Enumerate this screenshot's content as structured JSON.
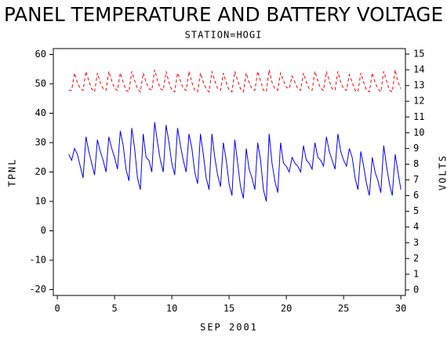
{
  "chart_data": {
    "type": "line",
    "title": "PANEL TEMPERATURE AND BATTERY VOLTAGE",
    "subtitle": "STATION=HOGI",
    "xlabel": "SEP 2001",
    "ylabel": "TPNL",
    "y2label": "VOLTS",
    "xlim": [
      -0.35,
      30.4
    ],
    "xticks": [
      0,
      5,
      10,
      15,
      20,
      25,
      30
    ],
    "ylim": [
      -22,
      62
    ],
    "yticks": [
      -20,
      -10,
      0,
      10,
      20,
      30,
      40,
      50,
      60
    ],
    "y2lim": [
      -0.35,
      15.35
    ],
    "y2ticks": [
      0,
      1,
      2,
      3,
      4,
      5,
      6,
      7,
      8,
      9,
      10,
      11,
      12,
      13,
      14,
      15
    ],
    "x": [
      1,
      1.25,
      1.5,
      1.75,
      2,
      2.25,
      2.5,
      2.75,
      3,
      3.25,
      3.5,
      3.75,
      4,
      4.25,
      4.5,
      4.75,
      5,
      5.25,
      5.5,
      5.75,
      6,
      6.25,
      6.5,
      6.75,
      7,
      7.25,
      7.5,
      7.75,
      8,
      8.25,
      8.5,
      8.75,
      9,
      9.25,
      9.5,
      9.75,
      10,
      10.25,
      10.5,
      10.75,
      11,
      11.25,
      11.5,
      11.75,
      12,
      12.25,
      12.5,
      12.75,
      13,
      13.25,
      13.5,
      13.75,
      14,
      14.25,
      14.5,
      14.75,
      15,
      15.25,
      15.5,
      15.75,
      16,
      16.25,
      16.5,
      16.75,
      17,
      17.25,
      17.5,
      17.75,
      18,
      18.25,
      18.5,
      18.75,
      19,
      19.25,
      19.5,
      19.75,
      20,
      20.25,
      20.5,
      20.75,
      21,
      21.25,
      21.5,
      21.75,
      22,
      22.25,
      22.5,
      22.75,
      23,
      23.25,
      23.5,
      23.75,
      24,
      24.25,
      24.5,
      24.75,
      25,
      25.25,
      25.5,
      25.75,
      26,
      26.25,
      26.5,
      26.75,
      27,
      27.25,
      27.5,
      27.75,
      28,
      28.25,
      28.5,
      28.75,
      29,
      29.25,
      29.5,
      29.75,
      30
    ],
    "series": [
      {
        "color": "#0000ff",
        "dash": false,
        "values": [
          26,
          24,
          28,
          26,
          22,
          18,
          32,
          27,
          23,
          19,
          31,
          27,
          24,
          20,
          32,
          28,
          25,
          21,
          34,
          29,
          21,
          17,
          35,
          28,
          18,
          14,
          33,
          25,
          24,
          20,
          37,
          30,
          24,
          20,
          36,
          30,
          23,
          19,
          35,
          29,
          24,
          20,
          33,
          28,
          20,
          16,
          33,
          26,
          18,
          14,
          33,
          25,
          19,
          15,
          30,
          24,
          16,
          12,
          31,
          23,
          15,
          11,
          28,
          21,
          18,
          14,
          30,
          24,
          14,
          10,
          33,
          23,
          17,
          13,
          30,
          23,
          22,
          20,
          25,
          23,
          22,
          20,
          29,
          24,
          23,
          21,
          30,
          25,
          24,
          22,
          32,
          27,
          24,
          21,
          33,
          27,
          24,
          22,
          28,
          25,
          18,
          14,
          27,
          22,
          16,
          12,
          25,
          20,
          17,
          13,
          29,
          22,
          16,
          12,
          26,
          20,
          14
        ]
      },
      {
        "color": "#ff0000",
        "dash": true,
        "axis": "y2",
        "values": [
          12.7,
          12.7,
          13.8,
          13.2,
          12.8,
          12.7,
          13.9,
          13.3,
          12.8,
          12.6,
          13.8,
          13.2,
          12.8,
          12.7,
          13.9,
          13.3,
          12.8,
          12.7,
          13.8,
          13.2,
          12.7,
          12.6,
          13.9,
          13.3,
          12.8,
          12.6,
          13.8,
          13.2,
          12.8,
          12.7,
          14.0,
          13.3,
          12.8,
          12.7,
          13.9,
          13.2,
          12.7,
          12.6,
          13.8,
          13.3,
          12.8,
          12.7,
          13.9,
          13.2,
          12.7,
          12.6,
          13.8,
          13.2,
          12.8,
          12.6,
          13.9,
          13.3,
          12.8,
          12.7,
          13.8,
          13.2,
          12.7,
          12.6,
          13.9,
          13.3,
          12.8,
          12.6,
          13.8,
          13.2,
          12.8,
          12.7,
          13.9,
          13.3,
          12.7,
          12.6,
          14.0,
          13.2,
          12.8,
          12.7,
          13.8,
          13.3,
          12.9,
          12.8,
          13.6,
          13.2,
          12.8,
          12.7,
          13.8,
          13.2,
          12.8,
          12.7,
          13.9,
          13.3,
          12.8,
          12.7,
          13.9,
          13.3,
          12.8,
          12.7,
          13.9,
          13.2,
          12.8,
          12.7,
          13.7,
          13.2,
          12.7,
          12.6,
          13.8,
          13.2,
          12.7,
          12.6,
          13.8,
          13.2,
          12.8,
          12.6,
          13.9,
          13.3,
          12.7,
          12.6,
          14.0,
          13.2,
          12.8
        ]
      }
    ]
  }
}
